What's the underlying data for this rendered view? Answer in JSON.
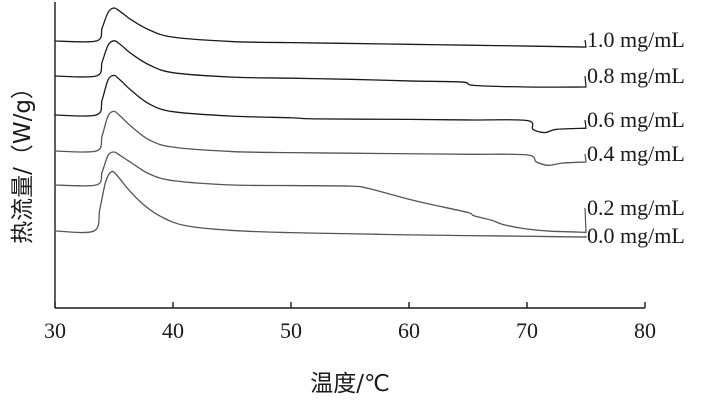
{
  "chart_data": {
    "type": "line",
    "xlabel": "温度/℃",
    "ylabel": "热流量/（W/g）",
    "xlim": [
      30,
      80
    ],
    "xticks": [
      30,
      40,
      50,
      60,
      70,
      80
    ],
    "y_tick_labels_shown": false,
    "grid": false,
    "legend_placement": "right, label at end of each curve",
    "series": [
      {
        "name": "1.0 mg/mL",
        "color": "#1a1a1a",
        "x": [
          30,
          33.5,
          34.0,
          34.5,
          35.0,
          35.5,
          36.5,
          38,
          40,
          45,
          50,
          55,
          60,
          65,
          70,
          75
        ],
        "y": [
          0,
          0,
          1.2,
          2.6,
          3.0,
          2.7,
          1.9,
          1.0,
          0.35,
          -0.05,
          -0.15,
          -0.22,
          -0.3,
          -0.38,
          -0.46,
          -0.55
        ]
      },
      {
        "name": "0.8 mg/mL",
        "color": "#1a1a1a",
        "x": [
          30,
          33.5,
          34.0,
          34.5,
          35.0,
          35.5,
          36.5,
          38,
          40,
          45,
          50,
          55,
          60,
          64.5,
          65.5,
          70,
          75
        ],
        "y": [
          0,
          0,
          1.3,
          2.8,
          3.2,
          2.9,
          2.0,
          1.0,
          0.3,
          -0.1,
          -0.2,
          -0.3,
          -0.45,
          -0.55,
          -0.85,
          -1.0,
          -1.0
        ]
      },
      {
        "name": "0.6 mg/mL",
        "color": "#1a1a1a",
        "x": [
          30,
          33.5,
          34.0,
          34.5,
          35.0,
          35.5,
          36.5,
          38,
          40,
          45,
          50,
          52,
          60,
          65,
          70,
          70.5,
          71.5,
          72.5,
          75
        ],
        "y": [
          0,
          0,
          1.4,
          3.2,
          3.6,
          3.2,
          2.2,
          1.0,
          0.3,
          -0.1,
          -0.25,
          -0.35,
          -0.4,
          -0.45,
          -0.5,
          -1.3,
          -1.6,
          -1.3,
          -1.2
        ]
      },
      {
        "name": "0.4 mg/mL",
        "color": "#555555",
        "x": [
          30,
          33.5,
          34.0,
          34.5,
          35.0,
          35.5,
          36.5,
          38,
          40,
          45,
          50,
          55,
          60,
          65,
          70,
          70.8,
          71.8,
          73,
          75
        ],
        "y": [
          0,
          0,
          1.4,
          3.2,
          3.6,
          3.2,
          2.2,
          1.0,
          0.35,
          -0.05,
          -0.15,
          -0.2,
          -0.25,
          -0.3,
          -0.35,
          -1.0,
          -1.3,
          -1.1,
          -1.0
        ]
      },
      {
        "name": "0.2 mg/mL",
        "color": "#555555",
        "x": [
          30,
          33.5,
          34.0,
          34.5,
          35.0,
          35.5,
          36.5,
          38,
          40,
          45,
          50,
          55,
          56.5,
          60,
          62,
          65,
          65.5,
          67,
          68,
          70,
          72,
          75
        ],
        "y": [
          0,
          0,
          1.2,
          2.7,
          3.0,
          2.7,
          2.0,
          1.0,
          0.4,
          0.0,
          -0.05,
          -0.1,
          -0.3,
          -1.3,
          -1.8,
          -2.5,
          -2.8,
          -3.2,
          -3.6,
          -4.0,
          -4.2,
          -4.3
        ]
      },
      {
        "name": "0.0 mg/mL",
        "color": "#555555",
        "x": [
          30,
          33.3,
          33.8,
          34.3,
          34.8,
          35.3,
          36.2,
          37.5,
          39,
          41,
          45,
          50,
          55,
          60,
          65,
          70,
          75
        ],
        "y": [
          0,
          0,
          2.0,
          4.5,
          5.4,
          5.0,
          3.8,
          2.4,
          1.3,
          0.5,
          0.05,
          -0.15,
          -0.25,
          -0.35,
          -0.42,
          -0.48,
          -0.55
        ]
      }
    ]
  }
}
